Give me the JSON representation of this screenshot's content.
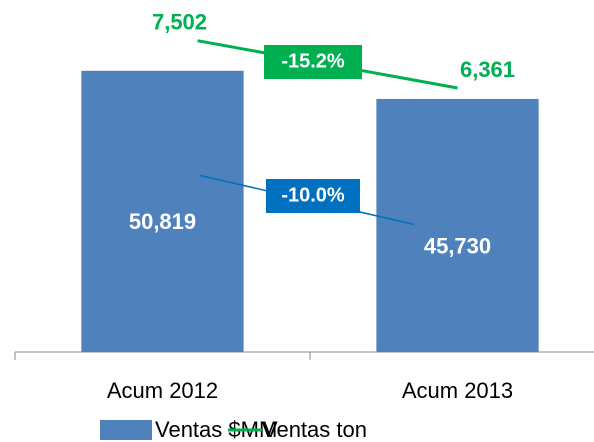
{
  "chart_data": {
    "type": "bar_line",
    "categories": [
      "Acum 2012",
      "Acum 2013"
    ],
    "series": [
      {
        "name": "Ventas $MM",
        "type": "bar",
        "color": "#4f81bd",
        "values": [
          50819,
          45730
        ],
        "value_labels": [
          "50,819",
          "45,730"
        ]
      },
      {
        "name": "Ventas ton",
        "type": "line",
        "axis": "y2",
        "color": "#00b050",
        "values": [
          7502,
          6361
        ],
        "value_labels": [
          "7,502",
          "6,361"
        ]
      }
    ],
    "annotations": [
      {
        "text": "-15.2%",
        "color": "#00b050"
      },
      {
        "text": "-10.0%",
        "color": "#0070c0"
      }
    ],
    "ylim": [
      0,
      60000
    ],
    "y2lim": [
      0,
      8000
    ],
    "legend": "bottom"
  }
}
